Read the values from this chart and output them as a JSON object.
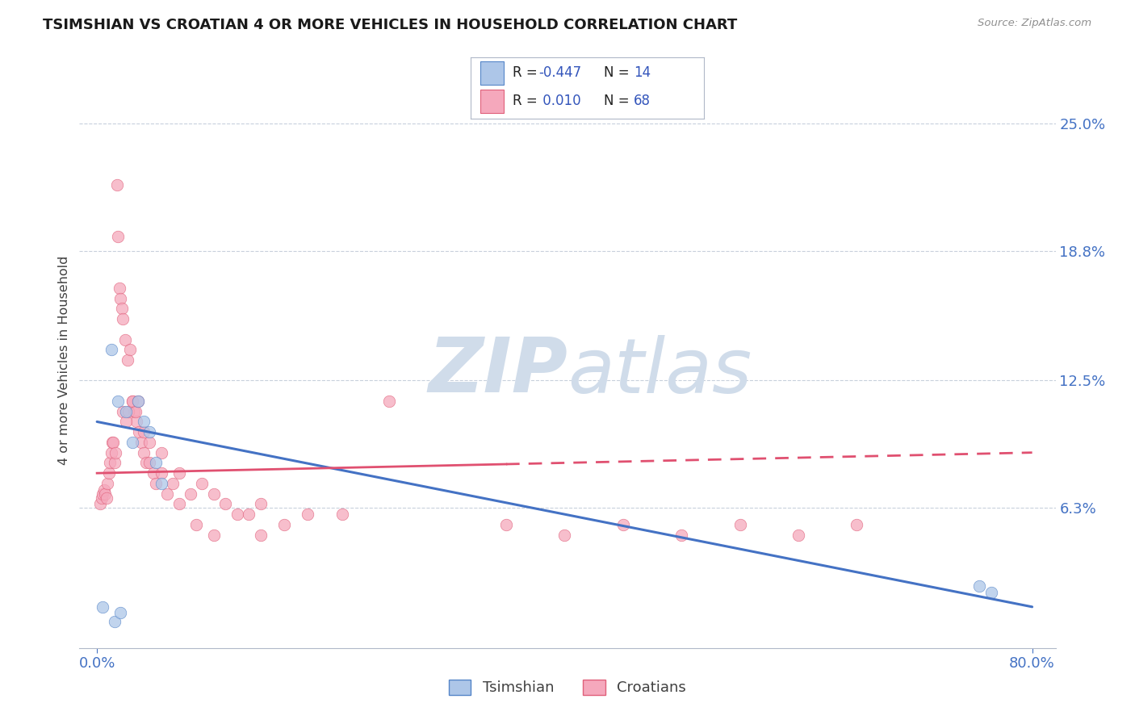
{
  "title": "TSIMSHIAN VS CROATIAN 4 OR MORE VEHICLES IN HOUSEHOLD CORRELATION CHART",
  "source_text": "Source: ZipAtlas.com",
  "ylabel": "4 or more Vehicles in Household",
  "xlim": [
    0.0,
    80.0
  ],
  "ylim": [
    0.0,
    27.0
  ],
  "x_ticks": [
    0.0,
    80.0
  ],
  "x_tick_labels": [
    "0.0%",
    "80.0%"
  ],
  "y_ticks_right": [
    6.3,
    12.5,
    18.8,
    25.0
  ],
  "y_tick_labels_right": [
    "6.3%",
    "12.5%",
    "18.8%",
    "25.0%"
  ],
  "tsimshian_color": "#adc6e8",
  "croatian_color": "#f5a8bc",
  "tsimshian_edge_color": "#5585c8",
  "croatian_edge_color": "#e0607a",
  "tsimshian_line_color": "#4472c4",
  "croatian_line_color": "#e05070",
  "background_color": "#ffffff",
  "grid_color": "#c8d0dc",
  "watermark_color": "#d0dcea",
  "tsimshian_x": [
    0.5,
    1.2,
    1.8,
    2.5,
    3.0,
    3.5,
    4.0,
    4.5,
    5.0,
    5.5,
    75.5,
    76.5,
    1.5,
    2.0
  ],
  "tsimshian_y": [
    1.5,
    14.0,
    11.5,
    11.0,
    9.5,
    11.5,
    10.5,
    10.0,
    8.5,
    7.5,
    2.5,
    2.2,
    0.8,
    1.2
  ],
  "croatian_x": [
    0.3,
    0.4,
    0.5,
    0.6,
    0.7,
    0.8,
    0.9,
    1.0,
    1.1,
    1.2,
    1.3,
    1.4,
    1.5,
    1.6,
    1.7,
    1.8,
    1.9,
    2.0,
    2.1,
    2.2,
    2.4,
    2.6,
    2.8,
    3.0,
    3.2,
    3.4,
    3.6,
    3.8,
    4.0,
    4.2,
    4.5,
    4.8,
    5.0,
    5.5,
    6.0,
    6.5,
    7.0,
    8.0,
    9.0,
    10.0,
    11.0,
    12.0,
    13.0,
    14.0,
    16.0,
    18.0,
    21.0,
    25.0,
    35.0,
    40.0,
    45.0,
    50.0,
    55.0,
    60.0,
    65.0,
    2.2,
    2.5,
    2.7,
    3.0,
    3.3,
    3.5,
    4.0,
    4.5,
    5.5,
    7.0,
    8.5,
    10.0,
    14.0
  ],
  "croatian_y": [
    6.5,
    6.8,
    7.0,
    7.2,
    7.0,
    6.8,
    7.5,
    8.0,
    8.5,
    9.0,
    9.5,
    9.5,
    8.5,
    9.0,
    22.0,
    19.5,
    17.0,
    16.5,
    16.0,
    15.5,
    14.5,
    13.5,
    14.0,
    11.5,
    11.0,
    10.5,
    10.0,
    9.5,
    9.0,
    8.5,
    8.5,
    8.0,
    7.5,
    8.0,
    7.0,
    7.5,
    8.0,
    7.0,
    7.5,
    7.0,
    6.5,
    6.0,
    6.0,
    6.5,
    5.5,
    6.0,
    6.0,
    11.5,
    5.5,
    5.0,
    5.5,
    5.0,
    5.5,
    5.0,
    5.5,
    11.0,
    10.5,
    11.0,
    11.5,
    11.0,
    11.5,
    10.0,
    9.5,
    9.0,
    6.5,
    5.5,
    5.0,
    5.0
  ],
  "tsim_line_x0": 0.0,
  "tsim_line_y0": 10.5,
  "tsim_line_x1": 80.0,
  "tsim_line_y1": 1.5,
  "cro_line_x0": 0.0,
  "cro_line_y0": 8.0,
  "cro_line_x1": 80.0,
  "cro_line_y1": 9.0,
  "cro_solid_end": 35.0
}
